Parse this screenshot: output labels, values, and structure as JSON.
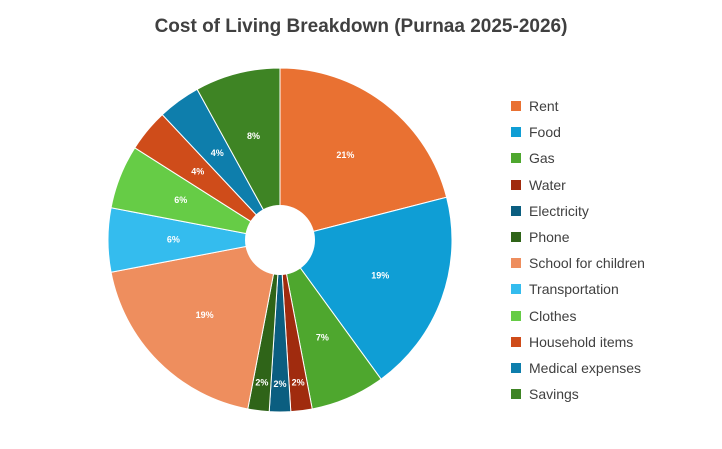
{
  "chart_data": {
    "type": "pie",
    "title": "Cost of Living Breakdown (Purnaa 2025-2026)",
    "donut_hole": true,
    "legend_position": "right",
    "start_angle_deg": 0,
    "direction": "clockwise",
    "slices": [
      {
        "label": "Rent",
        "value": 21,
        "display": "21%",
        "color": "#E97132"
      },
      {
        "label": "Food",
        "value": 19,
        "display": "19%",
        "color": "#0F9ED5"
      },
      {
        "label": "Gas",
        "value": 7,
        "display": "7%",
        "color": "#4EA72E"
      },
      {
        "label": "Water",
        "value": 2,
        "display": "2%",
        "color": "#A02B0E"
      },
      {
        "label": "Electricity",
        "value": 2,
        "display": "2%",
        "color": "#0B5E80"
      },
      {
        "label": "Phone",
        "value": 2,
        "display": "2%",
        "color": "#2F6418"
      },
      {
        "label": "School for children",
        "value": 19,
        "display": "19%",
        "color": "#EE8E5E"
      },
      {
        "label": "Transportation",
        "value": 6,
        "display": "6%",
        "color": "#34BCEE"
      },
      {
        "label": "Clothes",
        "value": 6,
        "display": "6%",
        "color": "#66CC46"
      },
      {
        "label": "Household items",
        "value": 4,
        "display": "4%",
        "color": "#CF4C1A"
      },
      {
        "label": "Medical expenses",
        "value": 4,
        "display": "4%",
        "color": "#0E7EAC"
      },
      {
        "label": "Savings",
        "value": 8,
        "display": "8%",
        "color": "#3E8424"
      }
    ]
  }
}
